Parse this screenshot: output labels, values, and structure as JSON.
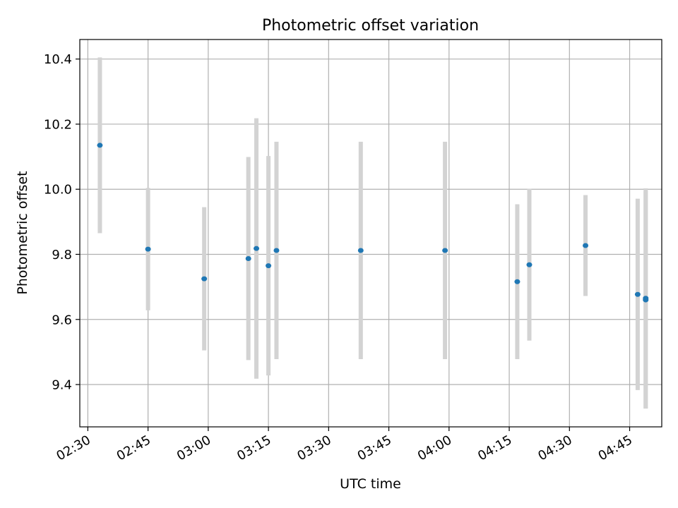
{
  "chart_data": {
    "type": "scatter",
    "title": "Photometric offset variation",
    "xlabel": "UTC time",
    "ylabel": "Photometric offset",
    "x_ticks": [
      "02:30",
      "02:45",
      "03:00",
      "03:15",
      "03:30",
      "03:45",
      "04:00",
      "04:15",
      "04:30",
      "04:45"
    ],
    "y_ticks": [
      "9.4",
      "9.6",
      "9.8",
      "10.0",
      "10.2",
      "10.4"
    ],
    "xlim": [
      "02:28",
      "04:53"
    ],
    "ylim": [
      9.27,
      10.46
    ],
    "grid": true,
    "legend": "none",
    "colors": {
      "points": "#1f77b4",
      "error_bars": "#d3d3d3",
      "grid": "#b0b0b0"
    },
    "points": [
      {
        "x": "02:33",
        "y": 10.135,
        "yerr_low": 9.865,
        "yerr_high": 10.405
      },
      {
        "x": "02:45",
        "y": 9.816,
        "yerr_low": 9.628,
        "yerr_high": 10.004
      },
      {
        "x": "02:59",
        "y": 9.725,
        "yerr_low": 9.505,
        "yerr_high": 9.945
      },
      {
        "x": "03:10",
        "y": 9.787,
        "yerr_low": 9.475,
        "yerr_high": 10.099
      },
      {
        "x": "03:12",
        "y": 9.818,
        "yerr_low": 9.418,
        "yerr_high": 10.218
      },
      {
        "x": "03:15",
        "y": 9.765,
        "yerr_low": 9.428,
        "yerr_high": 10.102
      },
      {
        "x": "03:17",
        "y": 9.812,
        "yerr_low": 9.478,
        "yerr_high": 10.146
      },
      {
        "x": "03:38",
        "y": 9.812,
        "yerr_low": 9.478,
        "yerr_high": 10.146
      },
      {
        "x": "03:59",
        "y": 9.812,
        "yerr_low": 9.478,
        "yerr_high": 10.146
      },
      {
        "x": "04:17",
        "y": 9.716,
        "yerr_low": 9.478,
        "yerr_high": 9.954
      },
      {
        "x": "04:20",
        "y": 9.768,
        "yerr_low": 9.535,
        "yerr_high": 10.001
      },
      {
        "x": "04:34",
        "y": 9.827,
        "yerr_low": 9.672,
        "yerr_high": 9.982
      },
      {
        "x": "04:47",
        "y": 9.677,
        "yerr_low": 9.383,
        "yerr_high": 9.971
      },
      {
        "x": "04:49",
        "y": 9.66,
        "yerr_low": 9.326,
        "yerr_high": 9.994
      },
      {
        "x": "04:49",
        "y": 9.665,
        "yerr_low": 9.327,
        "yerr_high": 10.003
      }
    ]
  }
}
